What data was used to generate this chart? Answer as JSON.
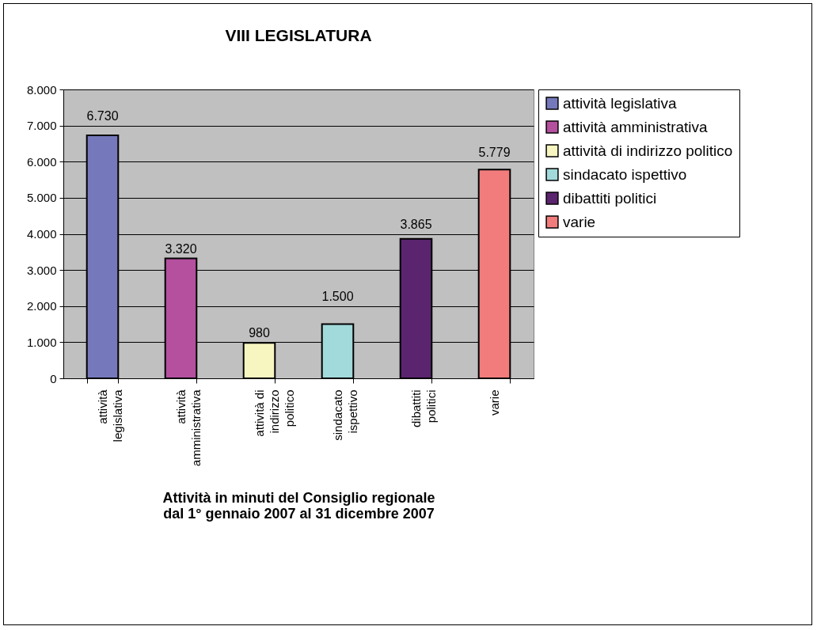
{
  "chart_data": {
    "type": "bar",
    "title": "VIII LEGISLATURA",
    "xlabel": "Attività in minuti del Consiglio regionale\ndal 1° gennaio 2007 al 31 dicembre 2007",
    "categories": [
      "attività legislativa",
      "attività amministrativa",
      "attività di indirizzo politico",
      "sindacato ispettivo",
      "dibattiti politici",
      "varie"
    ],
    "series": [
      {
        "name": "attività legislativa",
        "color": "#7579bb",
        "values": [
          6730,
          null,
          null,
          null,
          null,
          null
        ],
        "value_labels": [
          "6.730",
          null,
          null,
          null,
          null,
          null
        ]
      },
      {
        "name": "attività amministrativa",
        "color": "#b4509e",
        "values": [
          null,
          3320,
          null,
          null,
          null,
          null
        ],
        "value_labels": [
          null,
          "3.320",
          null,
          null,
          null,
          null
        ]
      },
      {
        "name": "attività di indirizzo politico",
        "color": "#f7f5c0",
        "values": [
          null,
          null,
          980,
          null,
          null,
          null
        ],
        "value_labels": [
          null,
          null,
          "980",
          null,
          null,
          null
        ]
      },
      {
        "name": "sindacato ispettivo",
        "color": "#a2d9da",
        "values": [
          null,
          null,
          null,
          1500,
          null,
          null
        ],
        "value_labels": [
          null,
          null,
          null,
          "1.500",
          null,
          null
        ]
      },
      {
        "name": "dibattiti politici",
        "color": "#5b246f",
        "values": [
          null,
          null,
          null,
          null,
          3865,
          null
        ],
        "value_labels": [
          null,
          null,
          null,
          null,
          "3.865",
          null
        ]
      },
      {
        "name": "varie",
        "color": "#f27c7c",
        "values": [
          null,
          null,
          null,
          null,
          null,
          5779
        ],
        "value_labels": [
          null,
          null,
          null,
          null,
          null,
          "5.779"
        ]
      }
    ],
    "ylim": [
      0,
      8000
    ],
    "yticks": [
      {
        "value": 0,
        "label": "0"
      },
      {
        "value": 1000,
        "label": "1.000"
      },
      {
        "value": 2000,
        "label": "2.000"
      },
      {
        "value": 3000,
        "label": "3.000"
      },
      {
        "value": 4000,
        "label": "4.000"
      },
      {
        "value": 5000,
        "label": "5.000"
      },
      {
        "value": 6000,
        "label": "6.000"
      },
      {
        "value": 7000,
        "label": "7.000"
      },
      {
        "value": 8000,
        "label": "8.000"
      }
    ],
    "grid": "y",
    "legend": "right"
  }
}
